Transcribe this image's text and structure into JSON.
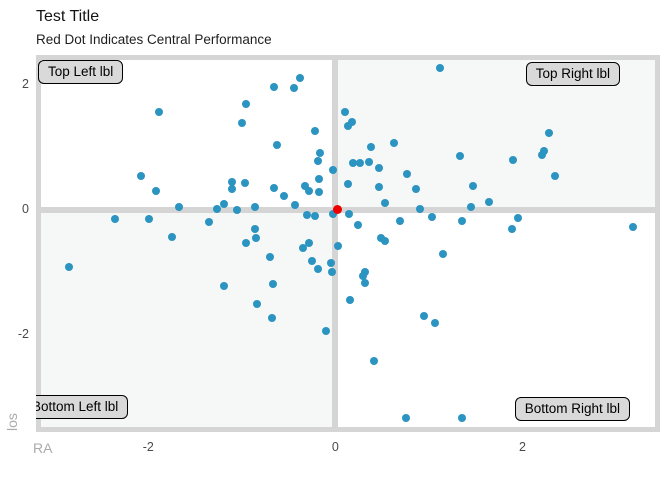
{
  "page": {
    "title": "Test Title",
    "subtitle": "Red Dot Indicates Central Performance"
  },
  "chart_data": {
    "type": "scatter",
    "title": "Test Title",
    "subtitle": "Red Dot Indicates Central Performance",
    "xlabel": "RA",
    "ylabel": "los",
    "xlim": [
      -3.2,
      3.47
    ],
    "ylim": [
      -3.55,
      2.48
    ],
    "grid": "off",
    "legend": "none",
    "x_ticks": [
      {
        "label": "-2",
        "value": -2
      },
      {
        "label": "0",
        "value": 0
      },
      {
        "label": "2",
        "value": 2
      }
    ],
    "y_ticks": [
      {
        "label": "2",
        "value": 2
      },
      {
        "label": "0",
        "value": 0
      },
      {
        "label": "-2",
        "value": -2
      }
    ],
    "quadrant_labels": {
      "top_left": "Top Left lbl",
      "top_right": "Top Right lbl",
      "bottom_left": "Bottom Left lbl",
      "bottom_right": "Bottom Right lbl"
    },
    "colors": {
      "point": "#2b94c1",
      "central_point": "#ee0000",
      "quadrant_shade": "#f6f7f7",
      "divider": "#d5d5d5",
      "label_box_fill": "#d9d9d9"
    },
    "series": [
      {
        "name": "points",
        "color": "#2b94c1",
        "points": [
          [
            -0.38,
            2.12
          ],
          [
            -0.66,
            1.97
          ],
          [
            -0.44,
            1.96
          ],
          [
            -0.95,
            1.69
          ],
          [
            -1.88,
            1.57
          ],
          [
            -1.0,
            1.39
          ],
          [
            -0.22,
            1.26
          ],
          [
            -0.62,
            1.04
          ],
          [
            -0.16,
            0.91
          ],
          [
            -0.19,
            0.79
          ],
          [
            -2.08,
            0.54
          ],
          [
            -0.03,
            0.64
          ],
          [
            -0.18,
            0.5
          ],
          [
            -1.1,
            0.45
          ],
          [
            -0.97,
            0.44
          ],
          [
            -1.1,
            0.33
          ],
          [
            -1.92,
            0.31
          ],
          [
            -0.66,
            0.36
          ],
          [
            -0.32,
            0.39
          ],
          [
            -0.28,
            0.3
          ],
          [
            -0.55,
            0.23
          ],
          [
            -0.17,
            0.29
          ],
          [
            -0.43,
            0.08
          ],
          [
            -1.27,
            0.02
          ],
          [
            -1.19,
            0.1
          ],
          [
            -1.67,
            0.05
          ],
          [
            -1.05,
            0.0
          ],
          [
            -0.86,
            0.05
          ],
          [
            -0.3,
            -0.08
          ],
          [
            -0.22,
            -0.1
          ],
          [
            -0.02,
            -0.07
          ],
          [
            -2.36,
            -0.14
          ],
          [
            -1.99,
            -0.15
          ],
          [
            -1.35,
            -0.19
          ],
          [
            -0.86,
            -0.3
          ],
          [
            -0.96,
            -0.52
          ],
          [
            -0.85,
            -0.44
          ],
          [
            -1.75,
            -0.43
          ],
          [
            -0.35,
            -0.6
          ],
          [
            -0.28,
            -0.52
          ],
          [
            -0.7,
            -0.75
          ],
          [
            -0.25,
            -0.82
          ],
          [
            -0.19,
            -0.95
          ],
          [
            -0.05,
            -0.84
          ],
          [
            -0.04,
            -0.99
          ],
          [
            -2.85,
            -0.91
          ],
          [
            -1.19,
            -1.21
          ],
          [
            -0.67,
            -1.18
          ],
          [
            -0.84,
            -1.5
          ],
          [
            -0.68,
            -1.73
          ],
          [
            -0.1,
            -1.94
          ],
          [
            1.12,
            2.28
          ],
          [
            0.1,
            1.57
          ],
          [
            0.18,
            1.41
          ],
          [
            0.13,
            1.34
          ],
          [
            0.38,
            1.01
          ],
          [
            0.63,
            1.08
          ],
          [
            2.28,
            1.23
          ],
          [
            2.23,
            0.94
          ],
          [
            2.21,
            0.88
          ],
          [
            1.33,
            0.86
          ],
          [
            1.9,
            0.8
          ],
          [
            0.19,
            0.75
          ],
          [
            0.26,
            0.76
          ],
          [
            0.36,
            0.77
          ],
          [
            0.47,
            0.67
          ],
          [
            0.77,
            0.58
          ],
          [
            2.35,
            0.54
          ],
          [
            0.14,
            0.41
          ],
          [
            0.47,
            0.37
          ],
          [
            0.86,
            0.33
          ],
          [
            1.47,
            0.38
          ],
          [
            0.53,
            0.12
          ],
          [
            0.9,
            0.02
          ],
          [
            1.64,
            0.13
          ],
          [
            1.45,
            0.05
          ],
          [
            0.15,
            -0.06
          ],
          [
            0.24,
            -0.24
          ],
          [
            0.69,
            -0.17
          ],
          [
            1.03,
            -0.11
          ],
          [
            1.35,
            -0.18
          ],
          [
            1.95,
            -0.13
          ],
          [
            1.89,
            -0.31
          ],
          [
            3.18,
            -0.27
          ],
          [
            0.49,
            -0.45
          ],
          [
            0.53,
            -0.5
          ],
          [
            0.03,
            -0.58
          ],
          [
            1.15,
            -0.7
          ],
          [
            0.32,
            -0.99
          ],
          [
            0.3,
            -1.05
          ],
          [
            0.32,
            -1.16
          ],
          [
            0.16,
            -1.44
          ],
          [
            0.95,
            -1.69
          ],
          [
            1.06,
            -1.81
          ],
          [
            0.41,
            -2.42
          ],
          [
            0.76,
            -3.32
          ],
          [
            1.35,
            -3.32
          ]
        ]
      },
      {
        "name": "central-point",
        "color": "#ee0000",
        "points": [
          [
            0.02,
            0.01
          ]
        ]
      }
    ]
  }
}
